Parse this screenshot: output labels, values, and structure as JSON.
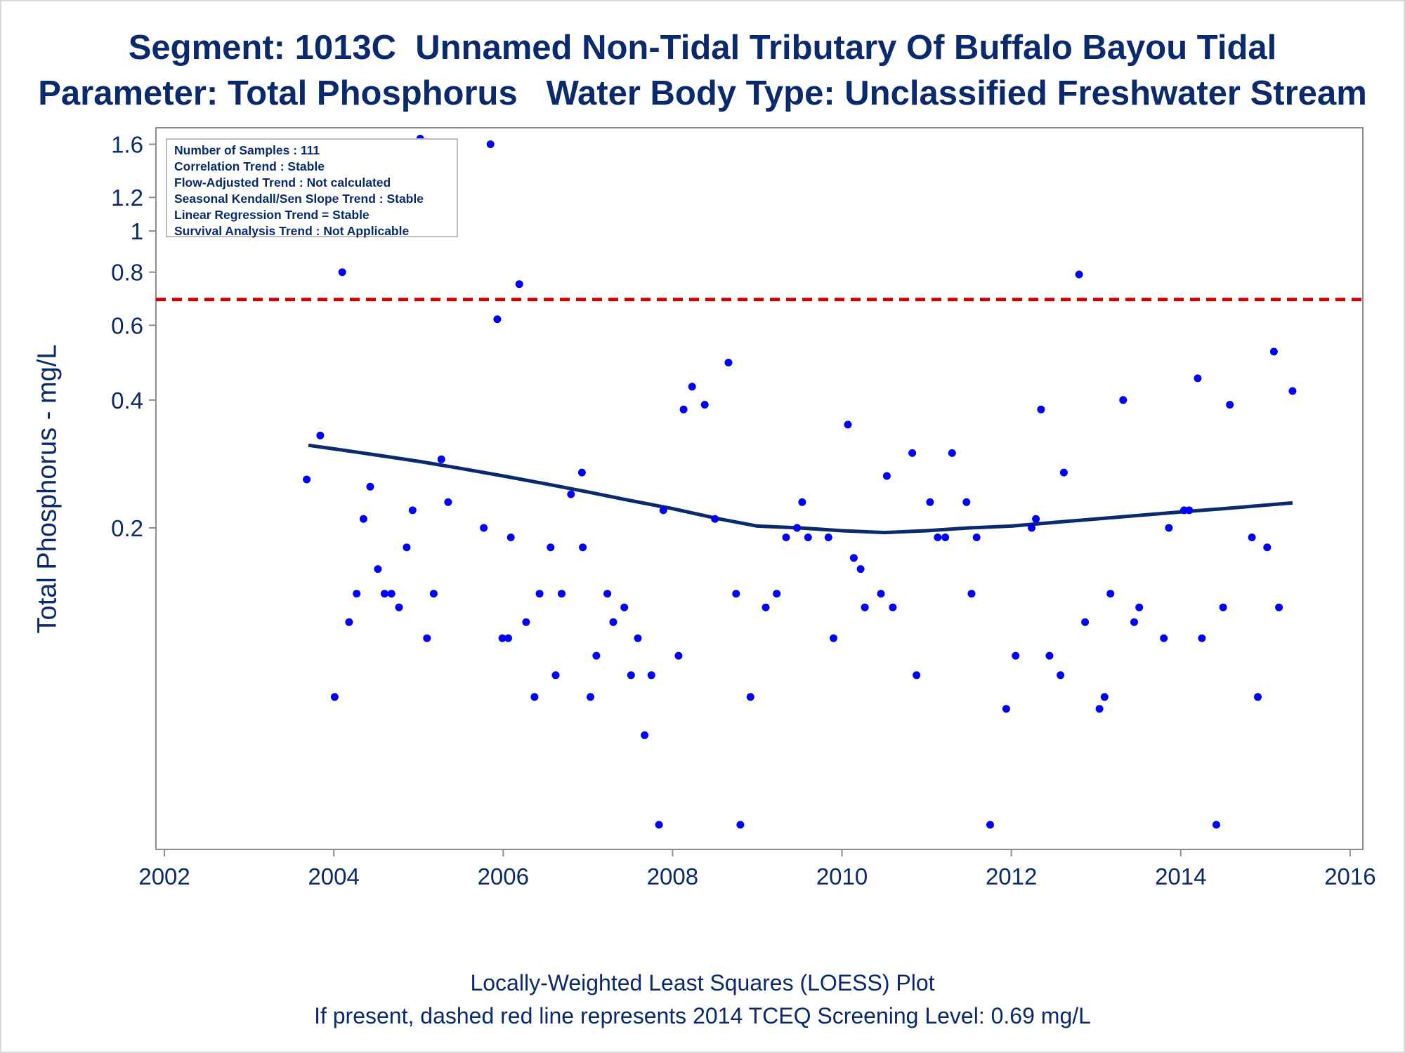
{
  "title": {
    "line1": "Segment: 1013C  Unnamed Non-Tidal Tributary Of Buffalo Bayou Tidal",
    "line2": "Parameter: Total Phosphorus   Water Body Type: Unclassified Freshwater Stream"
  },
  "stats_box": [
    "Number of Samples : 111",
    "Correlation Trend : Stable",
    "Flow-Adjusted Trend : Not calculated",
    "Seasonal Kendall/Sen Slope Trend : Stable",
    "Linear Regression Trend = Stable",
    "Survival Analysis Trend : Not Applicable"
  ],
  "footer": {
    "line1": "Locally-Weighted Least Squares (LOESS) Plot",
    "line2": "If present, dashed red line represents 2014 TCEQ Screening Level: 0.69 mg/L"
  },
  "colors": {
    "text": "#0b2a6e",
    "points": "#0000ff",
    "loess": "#0b2a6e",
    "screening_line": "#d40000",
    "axis": "#8c8c8c"
  },
  "chart_data": {
    "type": "scatter",
    "title": "Segment: 1013C  Unnamed Non-Tidal Tributary Of Buffalo Bayou Tidal / Parameter: Total Phosphorus   Water Body Type: Unclassified Freshwater Stream",
    "xlabel": "",
    "ylabel": "Total Phosphorus - mg/L",
    "x_unit": "year (decimal)",
    "xlim": [
      2001.9,
      2016.15
    ],
    "ylim": [
      0.035,
      1.75
    ],
    "y_scale": "log",
    "grid": false,
    "legend": "none",
    "x_ticks": [
      2002,
      2004,
      2006,
      2008,
      2010,
      2012,
      2014,
      2016
    ],
    "x_tick_labels": [
      "2002",
      "2004",
      "2006",
      "2008",
      "2010",
      "2012",
      "2014",
      "2016"
    ],
    "y_ticks": [
      0.2,
      0.4,
      0.6,
      0.8,
      1,
      1.2,
      1.6
    ],
    "y_tick_labels": [
      "0.2",
      "0.4",
      "0.6",
      "0.8",
      "1",
      "1.2",
      "1.6"
    ],
    "screening_level": {
      "value": 0.69,
      "style": "dashed"
    },
    "points": [
      [
        2003.68,
        0.26
      ],
      [
        2003.84,
        0.33
      ],
      [
        2004.01,
        0.08
      ],
      [
        2004.1,
        0.8
      ],
      [
        2004.18,
        0.12
      ],
      [
        2004.27,
        0.14
      ],
      [
        2004.35,
        0.21
      ],
      [
        2004.43,
        0.25
      ],
      [
        2004.52,
        0.16
      ],
      [
        2004.6,
        0.14
      ],
      [
        2004.68,
        0.14
      ],
      [
        2004.77,
        0.13
      ],
      [
        2004.86,
        0.18
      ],
      [
        2004.93,
        0.22
      ],
      [
        2005.02,
        1.65
      ],
      [
        2005.1,
        0.11
      ],
      [
        2005.18,
        0.14
      ],
      [
        2005.27,
        0.29
      ],
      [
        2005.35,
        0.23
      ],
      [
        2005.77,
        0.2
      ],
      [
        2005.85,
        1.6
      ],
      [
        2005.93,
        0.62
      ],
      [
        2005.99,
        0.11
      ],
      [
        2006.06,
        0.11
      ],
      [
        2006.09,
        0.19
      ],
      [
        2006.19,
        0.75
      ],
      [
        2006.27,
        0.12
      ],
      [
        2006.37,
        0.08
      ],
      [
        2006.43,
        0.14
      ],
      [
        2006.56,
        0.18
      ],
      [
        2006.62,
        0.09
      ],
      [
        2006.69,
        0.14
      ],
      [
        2006.8,
        0.24
      ],
      [
        2006.93,
        0.27
      ],
      [
        2006.94,
        0.18
      ],
      [
        2007.03,
        0.08
      ],
      [
        2007.1,
        0.1
      ],
      [
        2007.23,
        0.14
      ],
      [
        2007.3,
        0.12
      ],
      [
        2007.43,
        0.13
      ],
      [
        2007.51,
        0.09
      ],
      [
        2007.59,
        0.11
      ],
      [
        2007.67,
        0.065
      ],
      [
        2007.75,
        0.09
      ],
      [
        2007.84,
        0.04
      ],
      [
        2007.89,
        0.22
      ],
      [
        2008.07,
        0.1
      ],
      [
        2008.13,
        0.38
      ],
      [
        2008.23,
        0.43
      ],
      [
        2008.38,
        0.39
      ],
      [
        2008.5,
        0.21
      ],
      [
        2008.66,
        0.49
      ],
      [
        2008.75,
        0.14
      ],
      [
        2008.8,
        0.04
      ],
      [
        2008.92,
        0.08
      ],
      [
        2009.1,
        0.13
      ],
      [
        2009.23,
        0.14
      ],
      [
        2009.34,
        0.19
      ],
      [
        2009.47,
        0.2
      ],
      [
        2009.53,
        0.23
      ],
      [
        2009.6,
        0.19
      ],
      [
        2009.84,
        0.19
      ],
      [
        2009.9,
        0.11
      ],
      [
        2010.07,
        0.35
      ],
      [
        2010.14,
        0.17
      ],
      [
        2010.22,
        0.16
      ],
      [
        2010.27,
        0.13
      ],
      [
        2010.46,
        0.14
      ],
      [
        2010.53,
        0.265
      ],
      [
        2010.6,
        0.13
      ],
      [
        2010.83,
        0.3
      ],
      [
        2010.88,
        0.09
      ],
      [
        2011.04,
        0.23
      ],
      [
        2011.13,
        0.19
      ],
      [
        2011.22,
        0.19
      ],
      [
        2011.3,
        0.3
      ],
      [
        2011.47,
        0.23
      ],
      [
        2011.53,
        0.14
      ],
      [
        2011.59,
        0.19
      ],
      [
        2011.75,
        0.04
      ],
      [
        2011.94,
        0.075
      ],
      [
        2012.05,
        0.1
      ],
      [
        2012.24,
        0.2
      ],
      [
        2012.29,
        0.21
      ],
      [
        2012.35,
        0.38
      ],
      [
        2012.45,
        0.1
      ],
      [
        2012.58,
        0.09
      ],
      [
        2012.62,
        0.27
      ],
      [
        2012.8,
        0.79
      ],
      [
        2012.87,
        0.12
      ],
      [
        2013.04,
        0.075
      ],
      [
        2013.1,
        0.08
      ],
      [
        2013.17,
        0.14
      ],
      [
        2013.32,
        0.4
      ],
      [
        2013.45,
        0.12
      ],
      [
        2013.51,
        0.13
      ],
      [
        2013.8,
        0.11
      ],
      [
        2013.86,
        0.2
      ],
      [
        2014.04,
        0.22
      ],
      [
        2014.1,
        0.22
      ],
      [
        2014.2,
        0.45
      ],
      [
        2014.25,
        0.11
      ],
      [
        2014.42,
        0.04
      ],
      [
        2014.5,
        0.13
      ],
      [
        2014.58,
        0.39
      ],
      [
        2014.84,
        0.19
      ],
      [
        2014.91,
        0.08
      ],
      [
        2015.02,
        0.18
      ],
      [
        2015.1,
        0.52
      ],
      [
        2015.16,
        0.13
      ],
      [
        2015.32,
        0.42
      ]
    ],
    "loess": [
      [
        2003.7,
        0.313
      ],
      [
        2004.0,
        0.307
      ],
      [
        2004.5,
        0.297
      ],
      [
        2005.0,
        0.287
      ],
      [
        2005.5,
        0.276
      ],
      [
        2006.0,
        0.265
      ],
      [
        2006.5,
        0.254
      ],
      [
        2007.0,
        0.243
      ],
      [
        2007.5,
        0.232
      ],
      [
        2008.0,
        0.222
      ],
      [
        2008.5,
        0.211
      ],
      [
        2009.0,
        0.202
      ],
      [
        2009.5,
        0.2
      ],
      [
        2010.0,
        0.197
      ],
      [
        2010.5,
        0.195
      ],
      [
        2011.0,
        0.197
      ],
      [
        2011.5,
        0.2
      ],
      [
        2012.0,
        0.202
      ],
      [
        2012.5,
        0.206
      ],
      [
        2013.0,
        0.21
      ],
      [
        2013.5,
        0.214
      ],
      [
        2014.0,
        0.218
      ],
      [
        2014.5,
        0.222
      ],
      [
        2015.32,
        0.229
      ]
    ]
  }
}
